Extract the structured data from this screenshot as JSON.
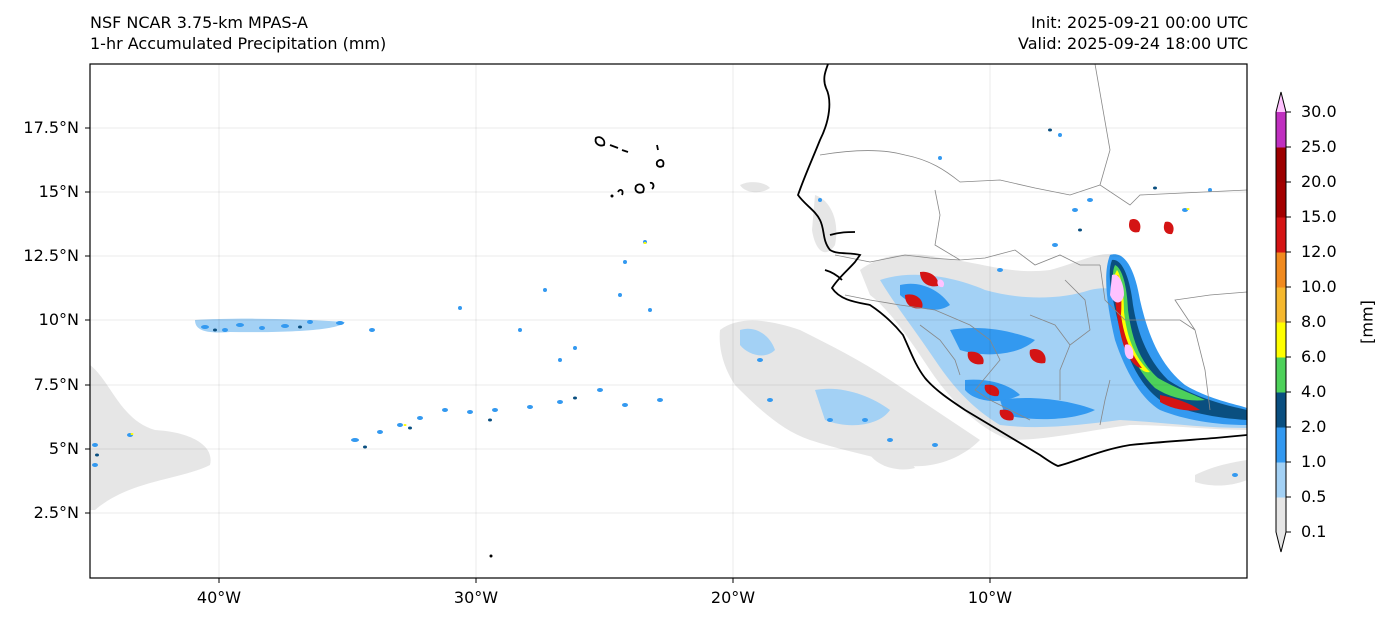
{
  "header": {
    "model_name": "NSF NCAR 3.75-km MPAS-A",
    "field_name": "1-hr Accumulated Precipitation (mm)",
    "init_time": "Init: 2025-09-21 00:00 UTC",
    "valid_time": "Valid: 2025-09-24 18:00 UTC"
  },
  "map": {
    "extent_lon": [
      -45,
      0
    ],
    "extent_lat": [
      0,
      20
    ],
    "lat_ticks": [
      {
        "value": 2.5,
        "label": "2.5°N"
      },
      {
        "value": 5,
        "label": "5°N"
      },
      {
        "value": 7.5,
        "label": "7.5°N"
      },
      {
        "value": 10,
        "label": "10°N"
      },
      {
        "value": 12.5,
        "label": "12.5°N"
      },
      {
        "value": 15,
        "label": "15°N"
      },
      {
        "value": 17.5,
        "label": "17.5°N"
      }
    ],
    "lon_ticks": [
      {
        "value": -40,
        "label": "40°W"
      },
      {
        "value": -30,
        "label": "30°W"
      },
      {
        "value": -20,
        "label": "20°W"
      },
      {
        "value": -10,
        "label": "10°W"
      }
    ],
    "gridlines": true
  },
  "colorbar": {
    "units": "[mm]",
    "levels": [
      "0.1",
      "0.5",
      "1.0",
      "2.0",
      "4.0",
      "6.0",
      "8.0",
      "10.0",
      "12.0",
      "15.0",
      "20.0",
      "25.0",
      "30.0"
    ],
    "colors": [
      "#e6e6e6",
      "#a3d1f5",
      "#3399f0",
      "#0a4f80",
      "#4dd15a",
      "#ffff00",
      "#f5b82e",
      "#f08a1f",
      "#d41414",
      "#a30000",
      "#9c0000",
      "#c030c0",
      "#ffc2ff"
    ],
    "extend": "both"
  }
}
